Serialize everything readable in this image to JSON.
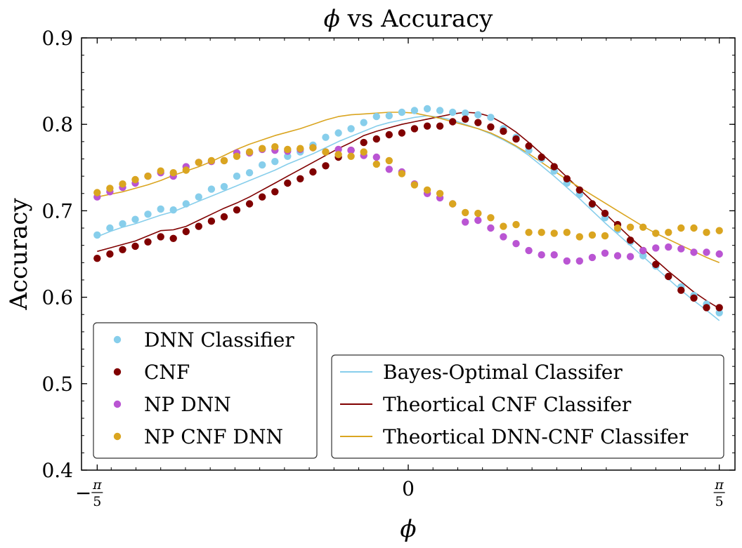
{
  "chart_data": {
    "type": "scatter",
    "title_symbol": "ϕ",
    "title_rest": " vs Accuracy",
    "xlabel": "ϕ",
    "ylabel": "Accuracy",
    "xlim": [
      -0.66,
      0.66
    ],
    "ylim": [
      0.4,
      0.9
    ],
    "x_ticks": [
      {
        "value": -0.6283,
        "minus": "−",
        "num": "π",
        "den": "5"
      },
      {
        "value": 0,
        "plain": "0"
      },
      {
        "value": 0.6283,
        "minus": "",
        "num": "π",
        "den": "5"
      }
    ],
    "y_ticks": [
      {
        "value": 0.4,
        "label": "0.4"
      },
      {
        "value": 0.5,
        "label": "0.5"
      },
      {
        "value": 0.6,
        "label": "0.6"
      },
      {
        "value": 0.7,
        "label": "0.7"
      },
      {
        "value": 0.8,
        "label": "0.8"
      },
      {
        "value": 0.9,
        "label": "0.9"
      }
    ],
    "x": [
      -0.6283,
      -0.6027,
      -0.577,
      -0.5514,
      -0.5258,
      -0.5001,
      -0.4745,
      -0.4488,
      -0.4232,
      -0.3976,
      -0.3719,
      -0.3463,
      -0.3206,
      -0.295,
      -0.2693,
      -0.2437,
      -0.2181,
      -0.1924,
      -0.1668,
      -0.1411,
      -0.1155,
      -0.0898,
      -0.0642,
      -0.0386,
      -0.0129,
      0.0127,
      0.0384,
      0.064,
      0.0897,
      0.1153,
      0.141,
      0.1666,
      0.1922,
      0.2179,
      0.2435,
      0.2692,
      0.2948,
      0.3205,
      0.3461,
      0.3717,
      0.3974,
      0.423,
      0.4487,
      0.4743,
      0.5,
      0.5256,
      0.5512,
      0.5769,
      0.6025,
      0.6283
    ],
    "scatter_series": [
      {
        "name": "DNN Classifier",
        "color": "#87ceeb",
        "values": [
          0.672,
          0.68,
          0.685,
          0.69,
          0.696,
          0.702,
          0.701,
          0.708,
          0.716,
          0.725,
          0.728,
          0.74,
          0.744,
          0.753,
          0.757,
          0.763,
          0.768,
          0.776,
          0.785,
          0.79,
          0.795,
          0.802,
          0.809,
          0.81,
          0.814,
          0.816,
          0.818,
          0.816,
          0.814,
          0.813,
          0.811,
          0.808,
          0.795,
          0.785,
          0.77,
          0.76,
          0.746,
          0.732,
          0.719,
          0.707,
          0.692,
          0.678,
          0.664,
          0.648,
          0.636,
          0.624,
          0.612,
          0.602,
          0.592,
          0.582
        ]
      },
      {
        "name": "CNF",
        "color": "#800000",
        "values": [
          0.645,
          0.65,
          0.655,
          0.659,
          0.664,
          0.67,
          0.668,
          0.676,
          0.682,
          0.688,
          0.693,
          0.701,
          0.708,
          0.716,
          0.722,
          0.732,
          0.737,
          0.745,
          0.752,
          0.762,
          0.77,
          0.779,
          0.783,
          0.788,
          0.79,
          0.795,
          0.798,
          0.798,
          0.803,
          0.806,
          0.802,
          0.797,
          0.792,
          0.783,
          0.775,
          0.762,
          0.751,
          0.737,
          0.724,
          0.708,
          0.697,
          0.684,
          0.666,
          0.654,
          0.638,
          0.624,
          0.608,
          0.599,
          0.588,
          0.588
        ]
      },
      {
        "name": "NP DNN",
        "color": "#ba55d3",
        "values": [
          0.716,
          0.722,
          0.727,
          0.732,
          0.74,
          0.744,
          0.74,
          0.751,
          0.756,
          0.757,
          0.758,
          0.767,
          0.767,
          0.771,
          0.77,
          0.769,
          0.771,
          0.773,
          0.768,
          0.771,
          0.77,
          0.764,
          0.762,
          0.748,
          0.745,
          0.731,
          0.72,
          0.715,
          0.708,
          0.687,
          0.689,
          0.68,
          0.67,
          0.662,
          0.654,
          0.649,
          0.649,
          0.642,
          0.642,
          0.646,
          0.651,
          0.648,
          0.647,
          0.654,
          0.657,
          0.658,
          0.656,
          0.652,
          0.652,
          0.65
        ]
      },
      {
        "name": "NP CNF DNN",
        "color": "#daa520",
        "values": [
          0.721,
          0.726,
          0.731,
          0.736,
          0.74,
          0.746,
          0.744,
          0.747,
          0.756,
          0.758,
          0.758,
          0.763,
          0.768,
          0.772,
          0.774,
          0.771,
          0.772,
          0.773,
          0.768,
          0.765,
          0.763,
          0.768,
          0.754,
          0.758,
          0.743,
          0.73,
          0.724,
          0.72,
          0.708,
          0.698,
          0.697,
          0.692,
          0.682,
          0.684,
          0.675,
          0.675,
          0.674,
          0.675,
          0.67,
          0.672,
          0.671,
          0.68,
          0.681,
          0.681,
          0.674,
          0.675,
          0.68,
          0.68,
          0.675,
          0.677
        ]
      }
    ],
    "line_series": [
      {
        "name": "Bayes-Optimal Classifer",
        "color": "#87ceeb",
        "values": [
          0.67,
          0.676,
          0.681,
          0.685,
          0.69,
          0.695,
          0.699,
          0.705,
          0.711,
          0.717,
          0.723,
          0.729,
          0.735,
          0.741,
          0.747,
          0.754,
          0.76,
          0.766,
          0.773,
          0.78,
          0.786,
          0.792,
          0.798,
          0.802,
          0.805,
          0.808,
          0.81,
          0.808,
          0.805,
          0.8,
          0.795,
          0.789,
          0.782,
          0.774,
          0.764,
          0.752,
          0.74,
          0.727,
          0.714,
          0.7,
          0.686,
          0.673,
          0.66,
          0.647,
          0.634,
          0.621,
          0.608,
          0.596,
          0.585,
          0.573
        ]
      },
      {
        "name": "Theortical CNF Classifer",
        "color": "#800000",
        "values": [
          0.653,
          0.657,
          0.661,
          0.665,
          0.671,
          0.677,
          0.678,
          0.682,
          0.689,
          0.696,
          0.703,
          0.709,
          0.716,
          0.724,
          0.732,
          0.74,
          0.748,
          0.756,
          0.764,
          0.772,
          0.779,
          0.787,
          0.792,
          0.796,
          0.8,
          0.803,
          0.806,
          0.809,
          0.812,
          0.814,
          0.813,
          0.809,
          0.801,
          0.791,
          0.779,
          0.766,
          0.753,
          0.739,
          0.725,
          0.711,
          0.697,
          0.683,
          0.669,
          0.656,
          0.643,
          0.63,
          0.618,
          0.606,
          0.596,
          0.587
        ]
      },
      {
        "name": "Theortical DNN-CNF Classifer",
        "color": "#daa520",
        "values": [
          0.716,
          0.719,
          0.722,
          0.726,
          0.73,
          0.735,
          0.741,
          0.746,
          0.751,
          0.757,
          0.764,
          0.771,
          0.777,
          0.782,
          0.787,
          0.791,
          0.795,
          0.8,
          0.805,
          0.809,
          0.811,
          0.812,
          0.813,
          0.814,
          0.814,
          0.813,
          0.81,
          0.807,
          0.803,
          0.799,
          0.795,
          0.79,
          0.783,
          0.775,
          0.766,
          0.756,
          0.746,
          0.736,
          0.727,
          0.718,
          0.709,
          0.7,
          0.691,
          0.682,
          0.674,
          0.667,
          0.66,
          0.653,
          0.646,
          0.64
        ]
      }
    ]
  }
}
